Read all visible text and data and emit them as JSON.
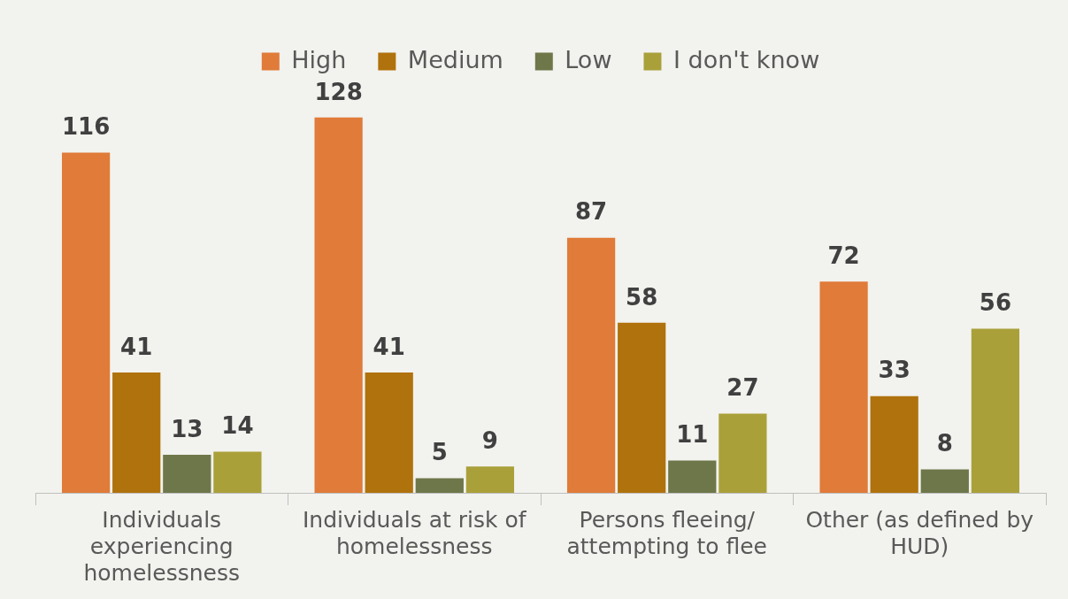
{
  "chart_data": {
    "type": "bar",
    "categories": [
      "Individuals experiencing homelessness",
      "Individuals at risk of homelessness",
      "Persons fleeing/ attempting to flee",
      "Other (as defined by HUD)"
    ],
    "series": [
      {
        "name": "High",
        "color": "#e07b39",
        "values": [
          116,
          128,
          87,
          72
        ]
      },
      {
        "name": "Medium",
        "color": "#b0720c",
        "values": [
          41,
          41,
          58,
          33
        ]
      },
      {
        "name": "Low",
        "color": "#6e774a",
        "values": [
          13,
          5,
          11,
          8
        ]
      },
      {
        "name": "I don't know",
        "color": "#aaa03a",
        "values": [
          14,
          9,
          27,
          56
        ]
      }
    ],
    "data_labels": true,
    "legend": "top",
    "grid": false
  }
}
